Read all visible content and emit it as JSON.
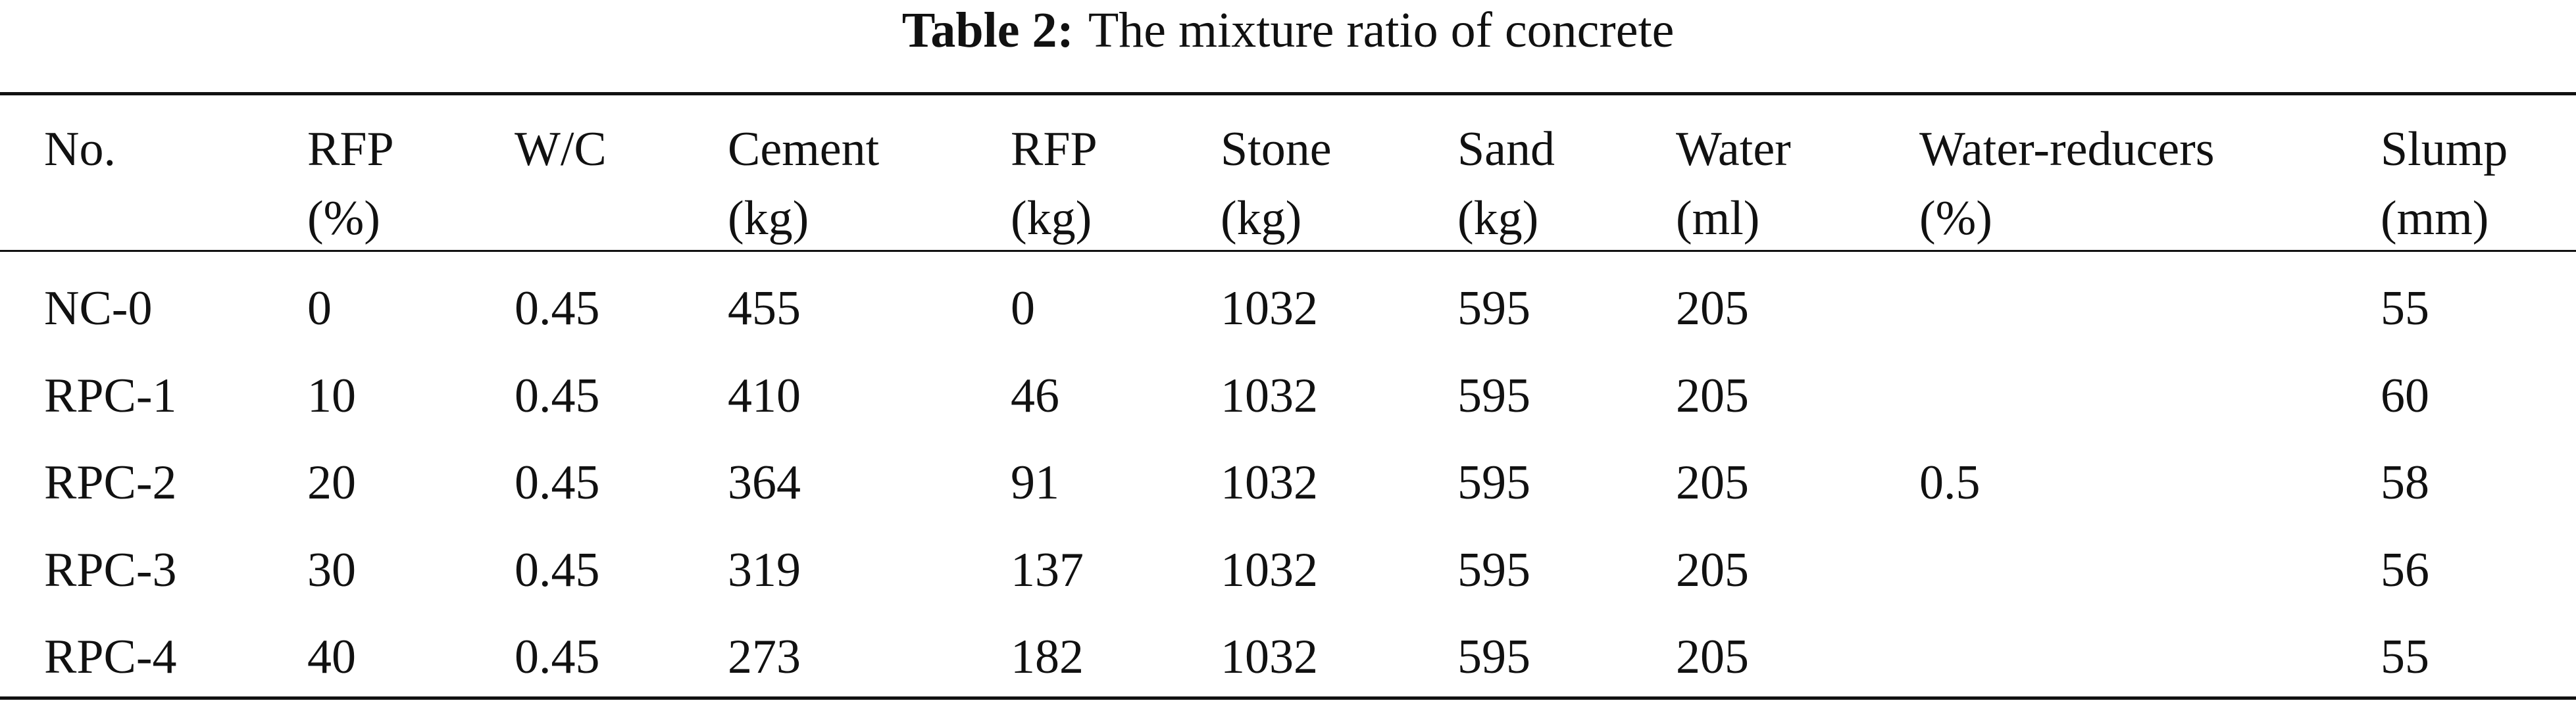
{
  "title": {
    "label": "Table 2:",
    "text": "The mixture ratio of concrete"
  },
  "table": {
    "headers": [
      [
        "No."
      ],
      [
        "RFP",
        "(%)"
      ],
      [
        "W/C"
      ],
      [
        "Cement",
        "(kg)"
      ],
      [
        "RFP",
        "(kg)"
      ],
      [
        "Stone",
        "(kg)"
      ],
      [
        "Sand",
        "(kg)"
      ],
      [
        "Water",
        "(ml)"
      ],
      [
        "Water-reducers",
        "(%)"
      ],
      [
        "Slump",
        "(mm)"
      ]
    ],
    "rows": [
      [
        "NC-0",
        "0",
        "0.45",
        "455",
        "0",
        "1032",
        "595",
        "205",
        "55"
      ],
      [
        "RPC-1",
        "10",
        "0.45",
        "410",
        "46",
        "1032",
        "595",
        "205",
        "60"
      ],
      [
        "RPC-2",
        "20",
        "0.45",
        "364",
        "91",
        "1032",
        "595",
        "205",
        "58"
      ],
      [
        "RPC-3",
        "30",
        "0.45",
        "319",
        "137",
        "1032",
        "595",
        "205",
        "56"
      ],
      [
        "RPC-4",
        "40",
        "0.45",
        "273",
        "182",
        "1032",
        "595",
        "205",
        "55"
      ]
    ],
    "water_reducers": "0.5"
  }
}
